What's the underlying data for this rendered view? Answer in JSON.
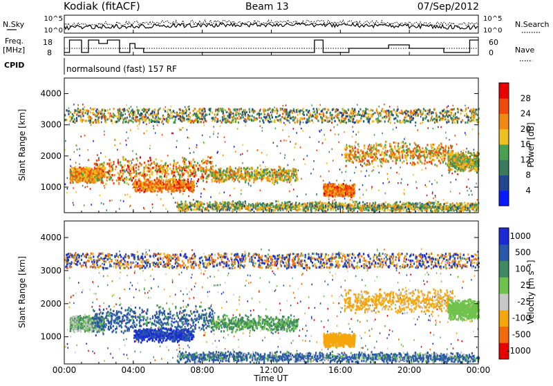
{
  "header": {
    "station": "Kodiak (fitACF)",
    "beam": "Beam 13",
    "date": "07/Sep/2012"
  },
  "noise_panel": {
    "left_label": "N.Sky",
    "right_label": "N.Search",
    "ticks": [
      "10^5",
      "10^0"
    ]
  },
  "freq_panel": {
    "left_label_1": "Freq.",
    "left_label_2": "[MHz]",
    "left_ticks": [
      "18",
      "8"
    ],
    "right_ticks": [
      "60",
      "0"
    ],
    "right_label": "Nave"
  },
  "cpid": {
    "label": "CPID",
    "text": "normalsound (fast) 157 RF"
  },
  "chart_data": [
    {
      "type": "heatmap",
      "panel": "power",
      "ylabel": "Slant Range [km]",
      "yticks": [
        "4000",
        "3000",
        "2000",
        "1000"
      ],
      "ylim": [
        180,
        4500
      ],
      "colorbar_label": "Power [dB]",
      "colorbar_ticks": [
        "28",
        "24",
        "20",
        "16",
        "12",
        "8",
        "4"
      ],
      "colorbar_range": [
        0,
        30
      ],
      "colors": [
        "#0a1aff",
        "#23478f",
        "#3b7a5c",
        "#49a04f",
        "#f0c020",
        "#f08a10",
        "#f24a0a",
        "#e80000"
      ],
      "echo_bands": [
        {
          "t": [
            0.3,
            2.2
          ],
          "r": [
            1150,
            1700
          ],
          "v": [
            14,
            26
          ]
        },
        {
          "t": [
            1.6,
            8.6
          ],
          "r": [
            1050,
            2000
          ],
          "v": [
            12,
            28
          ],
          "tilt": 0.08
        },
        {
          "t": [
            4.0,
            7.5
          ],
          "r": [
            850,
            1300
          ],
          "v": [
            16,
            28
          ]
        },
        {
          "t": [
            8.5,
            13.5
          ],
          "r": [
            1150,
            1700
          ],
          "v": [
            10,
            24
          ]
        },
        {
          "t": [
            15.0,
            16.8
          ],
          "r": [
            700,
            1150
          ],
          "v": [
            16,
            28
          ]
        },
        {
          "t": [
            16.2,
            22.5
          ],
          "r": [
            1700,
            2500
          ],
          "v": [
            12,
            26
          ]
        },
        {
          "t": [
            22.2,
            24.0
          ],
          "r": [
            1500,
            2200
          ],
          "v": [
            10,
            22
          ]
        },
        {
          "t": [
            6.5,
            24.0
          ],
          "r": [
            250,
            600
          ],
          "v": [
            6,
            22
          ],
          "tilt": -0.02
        },
        {
          "t": [
            0.0,
            24.0
          ],
          "r": [
            3100,
            3550
          ],
          "v": [
            4,
            24
          ]
        }
      ]
    },
    {
      "type": "heatmap",
      "panel": "velocity",
      "ylabel": "Slant Range [km]",
      "yticks": [
        "4000",
        "3000",
        "2000",
        "1000"
      ],
      "ylim": [
        180,
        4500
      ],
      "colorbar_label": "Velocity [m s⁻¹]",
      "colorbar_ticks": [
        "1000",
        "500",
        "100",
        "25",
        "-25",
        "-100",
        "-500",
        "-1000"
      ],
      "colors": [
        "#1a2ad6",
        "#2a58a8",
        "#3f8a60",
        "#6fc24b",
        "#c8c8c8",
        "#f5a60a",
        "#f26a0a",
        "#e80000"
      ],
      "echo_bands": [
        {
          "t": [
            0.3,
            2.2
          ],
          "r": [
            1150,
            1700
          ],
          "v": [
            -100,
            100
          ]
        },
        {
          "t": [
            1.6,
            8.6
          ],
          "r": [
            1050,
            2000
          ],
          "v": [
            -25,
            500
          ],
          "tilt": 0.08
        },
        {
          "t": [
            4.0,
            7.5
          ],
          "r": [
            850,
            1300
          ],
          "v": [
            100,
            1000
          ]
        },
        {
          "t": [
            8.5,
            13.5
          ],
          "r": [
            1150,
            1700
          ],
          "v": [
            -25,
            100
          ]
        },
        {
          "t": [
            15.0,
            16.8
          ],
          "r": [
            700,
            1150
          ],
          "v": [
            -500,
            -100
          ]
        },
        {
          "t": [
            16.2,
            22.5
          ],
          "r": [
            1700,
            2500
          ],
          "v": [
            -500,
            -25
          ]
        },
        {
          "t": [
            22.2,
            24.0
          ],
          "r": [
            1500,
            2200
          ],
          "v": [
            -25,
            25
          ]
        },
        {
          "t": [
            6.5,
            24.0
          ],
          "r": [
            250,
            600
          ],
          "v": [
            -100,
            500
          ],
          "tilt": -0.02
        },
        {
          "t": [
            0.0,
            24.0
          ],
          "r": [
            3100,
            3550
          ],
          "v": [
            -1000,
            1000
          ]
        }
      ]
    }
  ],
  "time_axis": {
    "xlabel": "Time UT",
    "ticks": [
      "00:00",
      "04:00",
      "08:00",
      "12:00",
      "16:00",
      "20:00",
      "00:00"
    ],
    "tick_hours": [
      0,
      4,
      8,
      12,
      16,
      20,
      24
    ],
    "xlim": [
      0,
      24
    ]
  }
}
